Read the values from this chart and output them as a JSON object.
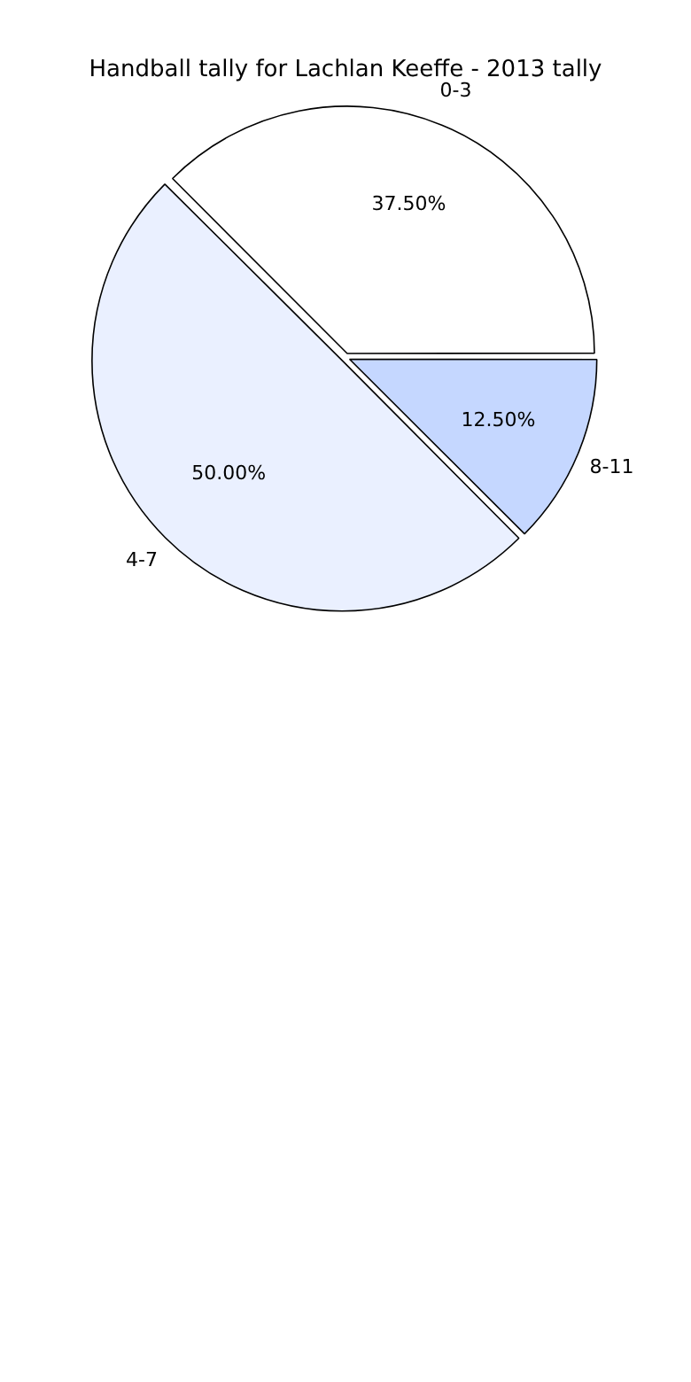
{
  "chart_data": {
    "type": "pie",
    "title": "Handball tally for Lachlan Keeffe - 2013 tally",
    "categories": [
      "0-3",
      "4-7",
      "8-11"
    ],
    "values": [
      37.5,
      50,
      12.5
    ],
    "colors": [
      "#ffffff",
      "#eaf0ff",
      "#c5d7ff"
    ],
    "value_labels": [
      "37.50%",
      "50.00%",
      "12.50%"
    ],
    "legend": false
  }
}
